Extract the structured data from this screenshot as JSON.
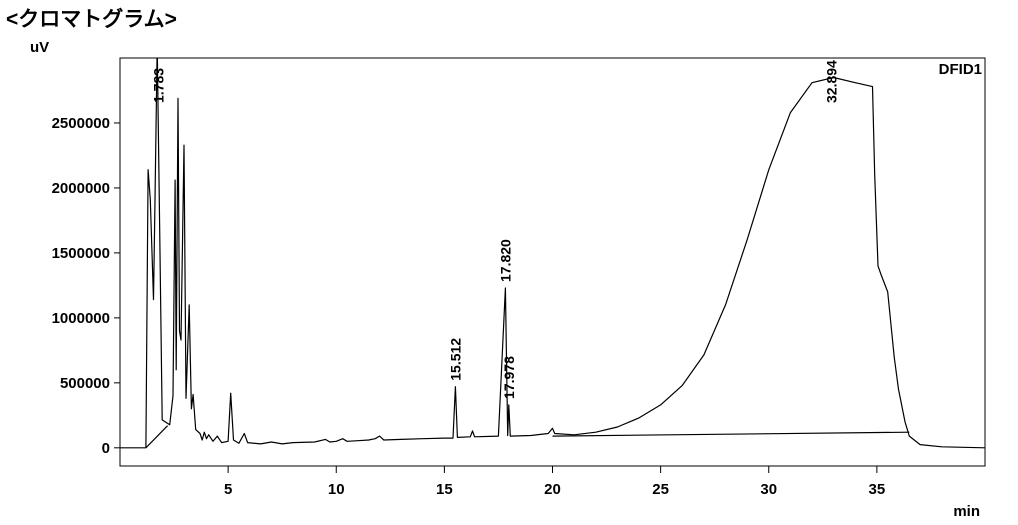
{
  "chart_data": {
    "type": "line",
    "title": "<クロマトグラム>",
    "y_label": "uV",
    "x_label": "min",
    "detector": "DFID1",
    "xlim": [
      0,
      40
    ],
    "ylim": [
      -140000,
      3000000
    ],
    "xticks": [
      5,
      10,
      15,
      20,
      25,
      30,
      35
    ],
    "yticks": [
      0,
      500000,
      1000000,
      1500000,
      2000000,
      2500000
    ],
    "series": [
      {
        "color": "#000000",
        "x": [
          0,
          1.2,
          1.3,
          1.4,
          1.55,
          1.62,
          1.72,
          1.85,
          1.95,
          2.3,
          2.45,
          2.55,
          2.6,
          2.68,
          2.75,
          2.82,
          2.96,
          3.05,
          3.2,
          3.3,
          3.38,
          3.5,
          3.7,
          3.8,
          3.9,
          4.0,
          4.1,
          4.3,
          4.5,
          4.7,
          5.0,
          5.12,
          5.25,
          5.5,
          5.75,
          5.9,
          6.5,
          7,
          7.5,
          8,
          9,
          9.5,
          9.7,
          10,
          10.3,
          10.5,
          11,
          11.5,
          11.8,
          12,
          12.2,
          13,
          14,
          15,
          15.4,
          15.51,
          15.6,
          16.2,
          16.3,
          16.4,
          17.5,
          17.82,
          17.93,
          17.98,
          18.05,
          19,
          19.8,
          20.0,
          20.1,
          21,
          22,
          23,
          24,
          25,
          26,
          27,
          28,
          29,
          30,
          31,
          32,
          33,
          34,
          34.8,
          34.9,
          35.05,
          35.2,
          35.5,
          35.8,
          36,
          36.3,
          36.5,
          37,
          38,
          40
        ],
        "values": [
          0,
          0,
          2140000,
          1910000,
          1140000,
          1910000,
          3100000,
          1500000,
          215000,
          177000,
          400000,
          2060000,
          600000,
          2690000,
          900000,
          830000,
          2330000,
          380000,
          1100000,
          300000,
          410000,
          140000,
          110000,
          60000,
          120000,
          70000,
          100000,
          50000,
          90000,
          40000,
          50000,
          420000,
          60000,
          35000,
          110000,
          40000,
          30000,
          45000,
          30000,
          40000,
          45000,
          65000,
          45000,
          50000,
          70000,
          50000,
          55000,
          60000,
          70000,
          90000,
          60000,
          65000,
          70000,
          75000,
          75000,
          470000,
          80000,
          85000,
          130000,
          85000,
          90000,
          1230000,
          95000,
          330000,
          90000,
          95000,
          110000,
          150000,
          110000,
          100000,
          120000,
          160000,
          230000,
          330000,
          480000,
          715000,
          1100000,
          1600000,
          2140000,
          2580000,
          2810000,
          2850000,
          2810000,
          2780000,
          2100000,
          1400000,
          1330000,
          1200000,
          700000,
          450000,
          200000,
          90000,
          25000,
          8000,
          0
        ]
      },
      {
        "color": "#000000",
        "x": [
          1.2,
          2.2
        ],
        "values": [
          0,
          170000
        ]
      },
      {
        "color": "#000000",
        "x": [
          20,
          36.5
        ],
        "values": [
          90000,
          120000
        ]
      }
    ],
    "peaks": [
      {
        "value": 1.783,
        "label": "1.783"
      },
      {
        "value": 15.512,
        "label": "15.512"
      },
      {
        "value": 17.82,
        "label": "17.820"
      },
      {
        "value": 17.978,
        "label": "17.978"
      },
      {
        "value": 32.894,
        "label": "32.894"
      }
    ]
  }
}
